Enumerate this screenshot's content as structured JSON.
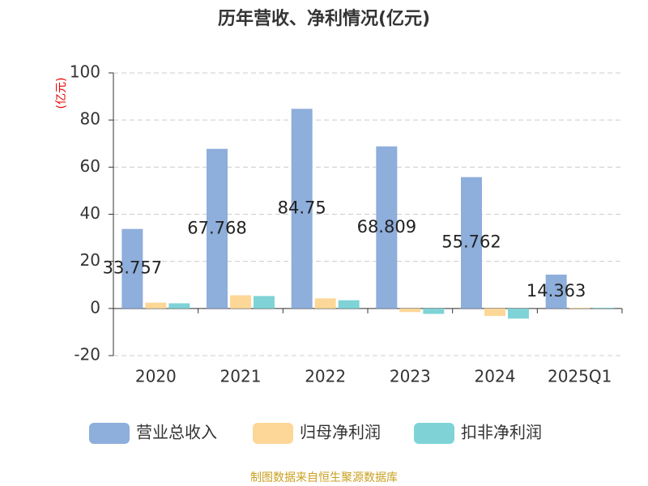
{
  "chart_data": {
    "type": "bar",
    "title": "历年营收、净利情况(亿元)",
    "y_label": "(亿元)",
    "footer": "制图数据来自恒生聚源数据库",
    "categories": [
      "2020",
      "2021",
      "2022",
      "2023",
      "2024",
      "2025Q1"
    ],
    "series": [
      {
        "name": "营业总收入",
        "color": "#8eaedb",
        "values": [
          33.757,
          67.768,
          84.75,
          68.809,
          55.762,
          14.363
        ],
        "show_labels": true
      },
      {
        "name": "归母净利润",
        "color": "#fdd797",
        "values": [
          2.5,
          5.6,
          4.3,
          -1.5,
          -3.2,
          0.3
        ]
      },
      {
        "name": "扣非净利润",
        "color": "#7fd3d6",
        "values": [
          2.2,
          5.3,
          3.5,
          -2.3,
          -4.3,
          0.3
        ]
      }
    ],
    "ylim": [
      -20,
      100
    ],
    "yticks": [
      -20,
      0,
      20,
      40,
      60,
      80,
      100
    ],
    "grid": true
  }
}
